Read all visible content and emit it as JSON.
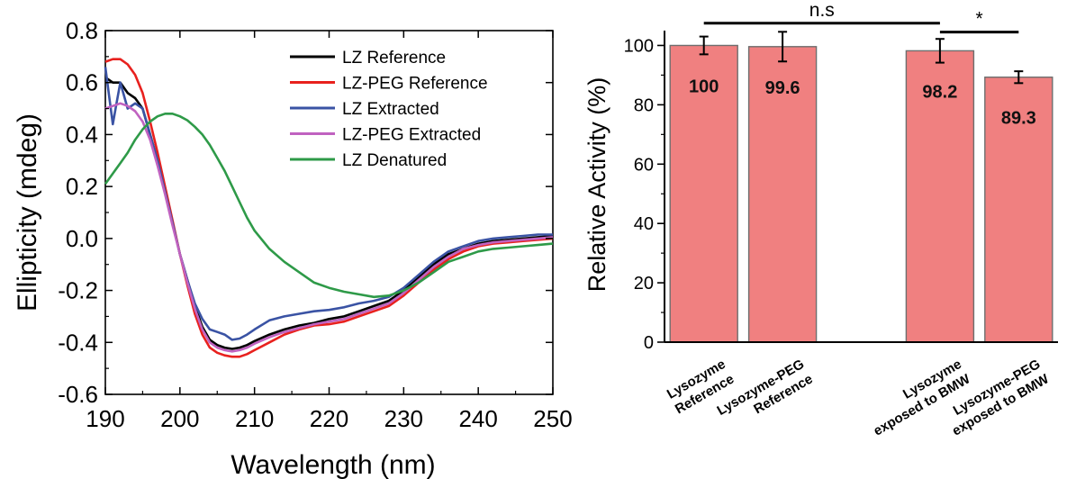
{
  "chart_data": [
    {
      "type": "line",
      "title": "",
      "xlabel": "Wavelength (nm)",
      "ylabel": "Ellipticity (mdeg)",
      "xlim": [
        190,
        250
      ],
      "ylim": [
        -0.6,
        0.8
      ],
      "xticks": [
        "190",
        "200",
        "210",
        "220",
        "230",
        "240",
        "250"
      ],
      "yticks": [
        "-0.6",
        "-0.4",
        "-0.2",
        "0.0",
        "0.2",
        "0.4",
        "0.6",
        "0.8"
      ],
      "legend_position": "top-right",
      "grid": false,
      "series": [
        {
          "name": "LZ Reference",
          "color": "#000000",
          "x": [
            190,
            191,
            192,
            193,
            194,
            195,
            196,
            197,
            198,
            199,
            200,
            201,
            202,
            203,
            204,
            205,
            206,
            207,
            208,
            209,
            210,
            212,
            214,
            216,
            218,
            220,
            222,
            224,
            226,
            228,
            230,
            232,
            234,
            236,
            238,
            240,
            242,
            244,
            246,
            248,
            250
          ],
          "y": [
            0.62,
            0.6,
            0.6,
            0.56,
            0.54,
            0.5,
            0.4,
            0.3,
            0.18,
            0.06,
            -0.06,
            -0.16,
            -0.26,
            -0.34,
            -0.39,
            -0.41,
            -0.42,
            -0.425,
            -0.42,
            -0.41,
            -0.395,
            -0.37,
            -0.35,
            -0.335,
            -0.325,
            -0.31,
            -0.3,
            -0.28,
            -0.26,
            -0.24,
            -0.2,
            -0.15,
            -0.1,
            -0.06,
            -0.04,
            -0.02,
            -0.01,
            -0.005,
            0.0,
            0.005,
            0.01
          ]
        },
        {
          "name": "LZ-PEG Reference",
          "color": "#e8211e",
          "x": [
            190,
            191,
            192,
            193,
            194,
            195,
            196,
            197,
            198,
            199,
            200,
            201,
            202,
            203,
            204,
            205,
            206,
            207,
            208,
            209,
            210,
            212,
            214,
            216,
            218,
            220,
            222,
            224,
            226,
            228,
            230,
            232,
            234,
            236,
            238,
            240,
            242,
            244,
            246,
            248,
            250
          ],
          "y": [
            0.68,
            0.69,
            0.69,
            0.67,
            0.63,
            0.56,
            0.45,
            0.33,
            0.2,
            0.07,
            -0.06,
            -0.18,
            -0.29,
            -0.37,
            -0.42,
            -0.44,
            -0.45,
            -0.455,
            -0.455,
            -0.445,
            -0.43,
            -0.4,
            -0.37,
            -0.35,
            -0.335,
            -0.33,
            -0.32,
            -0.3,
            -0.28,
            -0.26,
            -0.22,
            -0.17,
            -0.12,
            -0.08,
            -0.05,
            -0.03,
            -0.02,
            -0.015,
            -0.01,
            -0.005,
            0.0
          ]
        },
        {
          "name": "LZ Extracted",
          "color": "#3a53a4",
          "x": [
            190,
            190.5,
            191,
            191.5,
            192,
            192.5,
            193,
            194,
            195,
            196,
            197,
            198,
            199,
            200,
            201,
            202,
            203,
            204,
            205,
            206,
            207,
            208,
            209,
            210,
            212,
            214,
            216,
            218,
            220,
            222,
            224,
            226,
            228,
            230,
            232,
            234,
            236,
            238,
            240,
            242,
            244,
            246,
            248,
            250
          ],
          "y": [
            0.66,
            0.55,
            0.44,
            0.52,
            0.6,
            0.55,
            0.5,
            0.52,
            0.5,
            0.4,
            0.3,
            0.18,
            0.06,
            -0.06,
            -0.16,
            -0.25,
            -0.31,
            -0.35,
            -0.36,
            -0.37,
            -0.39,
            -0.385,
            -0.37,
            -0.35,
            -0.315,
            -0.3,
            -0.29,
            -0.28,
            -0.275,
            -0.265,
            -0.25,
            -0.24,
            -0.225,
            -0.19,
            -0.14,
            -0.09,
            -0.05,
            -0.03,
            -0.01,
            0.0,
            0.005,
            0.01,
            0.015,
            0.015
          ]
        },
        {
          "name": "LZ-PEG Extracted",
          "color": "#c062c0",
          "x": [
            190,
            191,
            192,
            193,
            194,
            195,
            196,
            197,
            198,
            199,
            200,
            201,
            202,
            203,
            204,
            205,
            206,
            207,
            208,
            209,
            210,
            212,
            214,
            216,
            218,
            220,
            222,
            224,
            226,
            228,
            230,
            232,
            234,
            236,
            238,
            240,
            242,
            244,
            246,
            248,
            250
          ],
          "y": [
            0.5,
            0.51,
            0.52,
            0.51,
            0.49,
            0.45,
            0.38,
            0.28,
            0.17,
            0.05,
            -0.06,
            -0.17,
            -0.27,
            -0.35,
            -0.4,
            -0.42,
            -0.43,
            -0.435,
            -0.43,
            -0.42,
            -0.405,
            -0.38,
            -0.36,
            -0.345,
            -0.33,
            -0.32,
            -0.31,
            -0.29,
            -0.27,
            -0.25,
            -0.21,
            -0.16,
            -0.11,
            -0.07,
            -0.04,
            -0.025,
            -0.015,
            -0.01,
            -0.005,
            0.0,
            0.005
          ]
        },
        {
          "name": "LZ Denatured",
          "color": "#2e9a48",
          "x": [
            190,
            191,
            192,
            193,
            194,
            195,
            196,
            197,
            198,
            199,
            200,
            201,
            202,
            203,
            204,
            205,
            206,
            207,
            208,
            209,
            210,
            212,
            214,
            216,
            218,
            220,
            222,
            224,
            226,
            228,
            230,
            232,
            234,
            236,
            238,
            240,
            242,
            244,
            246,
            248,
            250
          ],
          "y": [
            0.21,
            0.25,
            0.29,
            0.33,
            0.38,
            0.42,
            0.45,
            0.47,
            0.48,
            0.48,
            0.47,
            0.455,
            0.43,
            0.4,
            0.36,
            0.31,
            0.26,
            0.2,
            0.14,
            0.08,
            0.03,
            -0.04,
            -0.09,
            -0.13,
            -0.17,
            -0.19,
            -0.205,
            -0.215,
            -0.225,
            -0.22,
            -0.2,
            -0.17,
            -0.13,
            -0.09,
            -0.07,
            -0.05,
            -0.04,
            -0.035,
            -0.03,
            -0.025,
            -0.02
          ]
        }
      ]
    },
    {
      "type": "bar",
      "title": "",
      "xlabel": "",
      "ylabel": "Relative Activity (%)",
      "ylim": [
        0,
        105
      ],
      "yticks": [
        "0",
        "20",
        "40",
        "60",
        "80",
        "100"
      ],
      "bar_color": "#f08080",
      "bar_edge_color": "#6e6e6e",
      "categories": [
        [
          "Lysozyme",
          "Reference"
        ],
        [
          "Lysozyme-PEG",
          "Reference"
        ],
        [
          "Lysozyme",
          "exposed to BMW"
        ],
        [
          "Lysozyme-PEG",
          "exposed to BMW"
        ]
      ],
      "x_slots": [
        0,
        1,
        3,
        4
      ],
      "values": [
        100,
        99.6,
        98.2,
        89.3
      ],
      "value_labels": [
        "100",
        "99.6",
        "98.2",
        "89.3"
      ],
      "errors": [
        3,
        5,
        4,
        2
      ],
      "significance": [
        {
          "from": 0,
          "to": 2,
          "label": "n.s",
          "y": 107.5
        },
        {
          "from": 2,
          "to": 3,
          "label": "*",
          "y": 104.5
        }
      ]
    }
  ]
}
